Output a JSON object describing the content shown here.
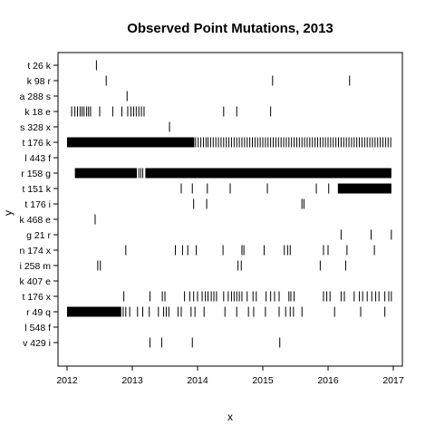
{
  "chart_data": {
    "type": "strip",
    "title": "Observed Point Mutations, 2013",
    "xlabel": "x",
    "ylabel": "y",
    "xlim": [
      2012.0,
      2017.0
    ],
    "x_ticks": [
      2012,
      2013,
      2014,
      2015,
      2016,
      2017
    ],
    "grid": false,
    "legend": "none",
    "mark_color": "#000000",
    "categories": [
      "t 26 k",
      "k 98 r",
      "a 288 s",
      "k 18 e",
      "s 328 x",
      "t 176 k",
      "l 443 f",
      "r 158 g",
      "t 151 k",
      "t 176 i",
      "k 468 e",
      "g 21 r",
      "n 174 x",
      "i 258 m",
      "k 407 e",
      "t 176 x",
      "r 49 q",
      "l 548 f",
      "v 429 i"
    ],
    "events": [
      {
        "category": "t 26 k",
        "dense_ranges": [],
        "x": [
          2012.45
        ]
      },
      {
        "category": "k 98 r",
        "dense_ranges": [],
        "x": [
          2012.6,
          2015.15,
          2016.33
        ]
      },
      {
        "category": "a 288 s",
        "dense_ranges": [],
        "x": [
          2012.92
        ]
      },
      {
        "category": "k 18 e",
        "dense_ranges": [],
        "x": [
          2012.07,
          2012.12,
          2012.16,
          2012.2,
          2012.23,
          2012.26,
          2012.3,
          2012.33,
          2012.36,
          2012.5,
          2012.7,
          2012.84,
          2012.93,
          2012.98,
          2013.02,
          2013.06,
          2013.1,
          2013.14,
          2013.18,
          2014.4,
          2014.6,
          2015.12
        ]
      },
      {
        "category": "s 328 x",
        "dense_ranges": [],
        "x": [
          2013.57
        ]
      },
      {
        "category": "t 176 k",
        "dense_ranges": [
          [
            2012.0,
            2013.95
          ]
        ],
        "x": [
          2013.97,
          2014.01,
          2014.05,
          2014.09,
          2014.13,
          2014.16,
          2014.2,
          2014.24,
          2014.28,
          2014.32,
          2014.36,
          2014.4,
          2014.44,
          2014.48,
          2014.52,
          2014.56,
          2014.6,
          2014.64,
          2014.68,
          2014.72,
          2014.76,
          2014.8,
          2014.84,
          2014.88,
          2014.92,
          2014.96,
          2015.0,
          2015.04,
          2015.08,
          2015.12,
          2015.16,
          2015.2,
          2015.24,
          2015.28,
          2015.32,
          2015.36,
          2015.4,
          2015.44,
          2015.48,
          2015.52,
          2015.56,
          2015.6,
          2015.64,
          2015.68,
          2015.72,
          2015.76,
          2015.8,
          2015.84,
          2015.88,
          2015.92,
          2015.96,
          2016.0,
          2016.04,
          2016.08,
          2016.12,
          2016.16,
          2016.2,
          2016.24,
          2016.28,
          2016.32,
          2016.36,
          2016.4,
          2016.44,
          2016.48,
          2016.52,
          2016.56,
          2016.6,
          2016.64,
          2016.68,
          2016.72,
          2016.76,
          2016.8,
          2016.84,
          2016.88,
          2016.92,
          2016.96
        ]
      },
      {
        "category": "l 443 f",
        "dense_ranges": [],
        "x": []
      },
      {
        "category": "r 158 g",
        "dense_ranges": [
          [
            2012.12,
            2013.07
          ],
          [
            2013.2,
            2016.97
          ]
        ],
        "x": [
          2013.1,
          2013.13,
          2013.16
        ]
      },
      {
        "category": "t 151 k",
        "dense_ranges": [
          [
            2016.15,
            2016.97
          ]
        ],
        "x": [
          2013.75,
          2013.92,
          2014.15,
          2014.5,
          2015.07,
          2015.82,
          2016.01
        ]
      },
      {
        "category": "t 176 i",
        "dense_ranges": [],
        "x": [
          2013.94,
          2014.14,
          2015.6,
          2015.63
        ]
      },
      {
        "category": "k 468 e",
        "dense_ranges": [],
        "x": [
          2012.43
        ]
      },
      {
        "category": "g 21 r",
        "dense_ranges": [],
        "x": [
          2016.2,
          2016.66,
          2016.97
        ]
      },
      {
        "category": "n 174 x",
        "dense_ranges": [],
        "x": [
          2012.9,
          2013.66,
          2013.77,
          2013.85,
          2013.98,
          2014.39,
          2014.68,
          2014.71,
          2015.02,
          2015.33,
          2015.38,
          2015.42,
          2015.93,
          2016.0,
          2016.29,
          2016.71
        ]
      },
      {
        "category": "i 258 m",
        "dense_ranges": [],
        "x": [
          2012.47,
          2012.51,
          2014.62,
          2014.67,
          2015.88,
          2016.27
        ]
      },
      {
        "category": "k 407 e",
        "dense_ranges": [],
        "x": []
      },
      {
        "category": "t 176 x",
        "dense_ranges": [],
        "x": [
          2012.87,
          2013.27,
          2013.46,
          2013.5,
          2013.8,
          2013.88,
          2013.94,
          2014.0,
          2014.07,
          2014.12,
          2014.16,
          2014.21,
          2014.25,
          2014.29,
          2014.4,
          2014.47,
          2014.52,
          2014.56,
          2014.6,
          2014.64,
          2014.68,
          2014.76,
          2014.85,
          2014.9,
          2015.05,
          2015.12,
          2015.18,
          2015.25,
          2015.4,
          2015.43,
          2015.48,
          2015.93,
          2015.98,
          2016.03,
          2016.2,
          2016.25,
          2016.4,
          2016.48,
          2016.53,
          2016.6,
          2016.67,
          2016.73,
          2016.78,
          2016.87,
          2016.93,
          2016.97
        ]
      },
      {
        "category": "r 49 q",
        "dense_ranges": [
          [
            2012.0,
            2012.83
          ]
        ],
        "x": [
          2012.86,
          2012.9,
          2012.96,
          2013.08,
          2013.16,
          2013.26,
          2013.4,
          2013.48,
          2013.52,
          2013.56,
          2013.7,
          2013.75,
          2013.9,
          2013.96,
          2014.1,
          2014.42,
          2014.6,
          2014.78,
          2014.86,
          2015.04,
          2015.25,
          2015.35,
          2015.42,
          2015.47,
          2015.6,
          2016.1,
          2016.5,
          2016.87
        ]
      },
      {
        "category": "l 548 f",
        "dense_ranges": [],
        "x": []
      },
      {
        "category": "v 429 i",
        "dense_ranges": [],
        "x": [
          2013.27,
          2013.45,
          2013.92,
          2015.26
        ]
      }
    ]
  }
}
